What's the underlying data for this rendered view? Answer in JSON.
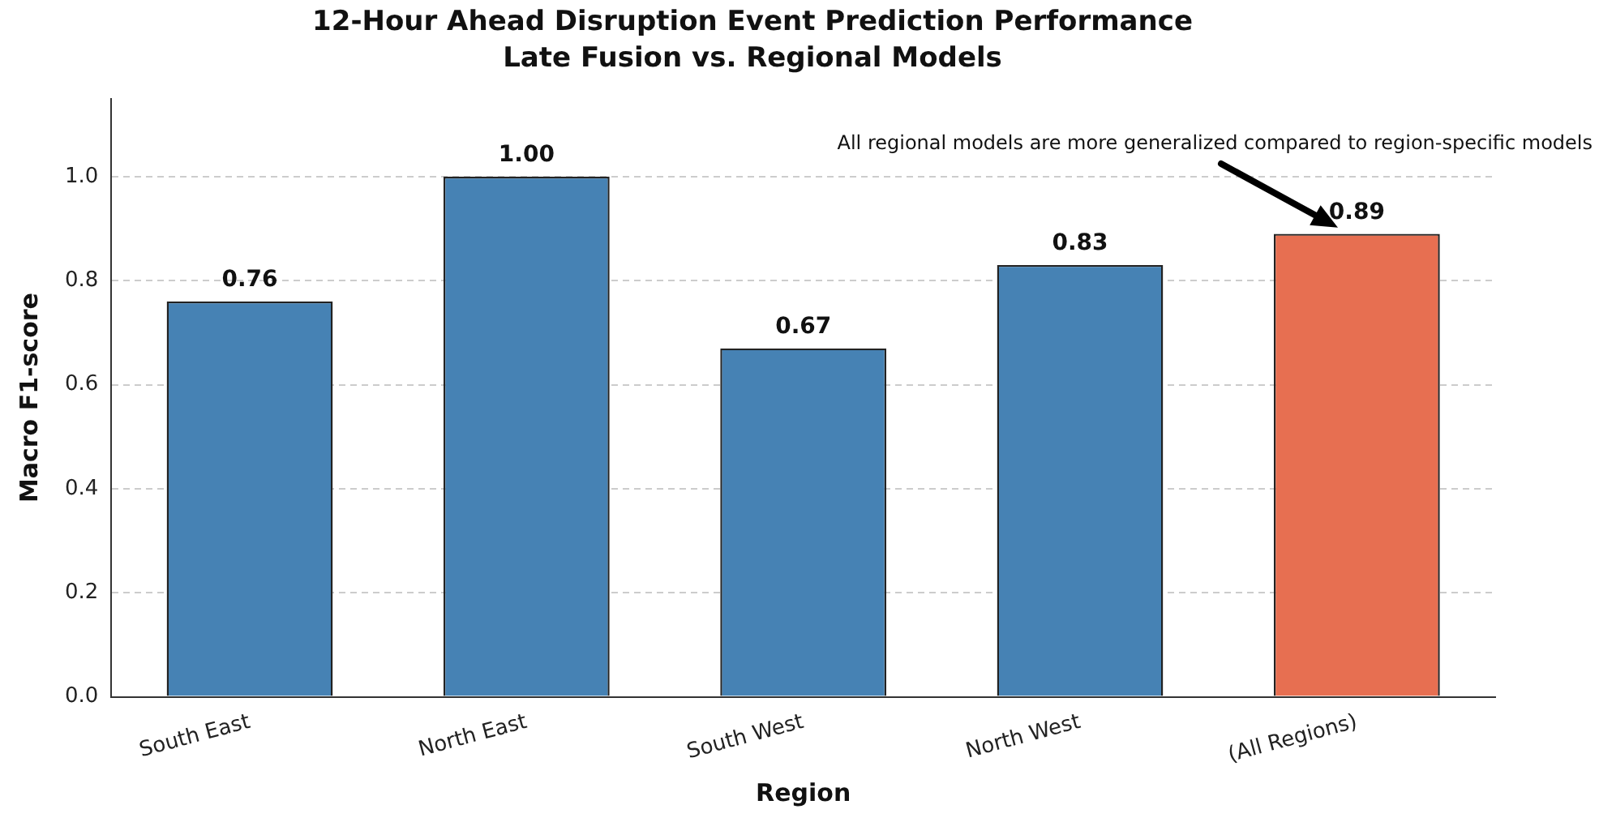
{
  "chart_data": {
    "type": "bar",
    "title": "12-Hour Ahead Disruption Event Prediction Performance",
    "subtitle": "Late Fusion vs. Regional Models",
    "xlabel": "Region",
    "ylabel": "Macro F1-score",
    "categories": [
      "South East",
      "North East",
      "South West",
      "North West",
      "(All Regions)"
    ],
    "values": [
      0.76,
      1.0,
      0.67,
      0.83,
      0.89
    ],
    "value_labels": [
      "0.76",
      "1.00",
      "0.67",
      "0.83",
      "0.89"
    ],
    "colors": [
      "#4682b4",
      "#4682b4",
      "#4682b4",
      "#4682b4",
      "#e76f51"
    ],
    "ylim": [
      0,
      1.15
    ],
    "yticks": [
      {
        "value": 0,
        "label": "0.0"
      },
      {
        "value": 0.2,
        "label": "0.2"
      },
      {
        "value": 0.4,
        "label": "0.4"
      },
      {
        "value": 0.6,
        "label": "0.6"
      },
      {
        "value": 0.8,
        "label": "0.8"
      },
      {
        "value": 1.0,
        "label": "1.0"
      }
    ],
    "grid": "y",
    "legend": false,
    "annotations": [
      "All regional models are more generalized compared to region-specific models"
    ]
  }
}
